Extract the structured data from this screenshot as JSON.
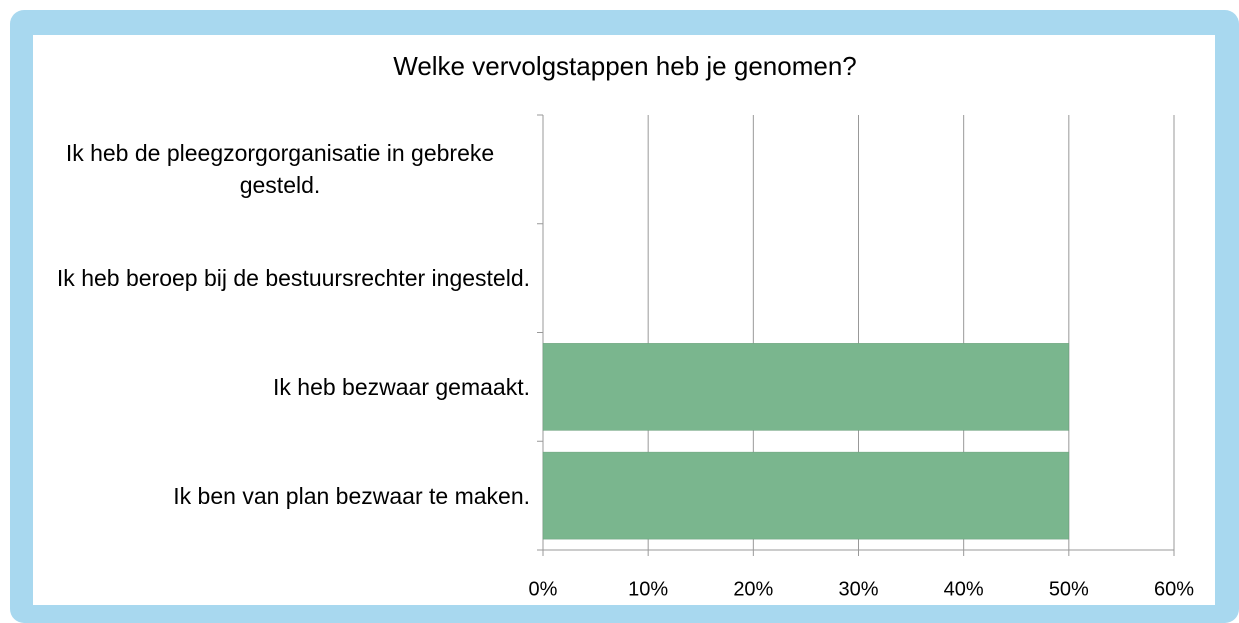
{
  "chart_data": {
    "type": "hbar",
    "title": "Welke vervolgstappen heb je genomen?",
    "categories": [
      "Ik heb de pleegzorgorganisatie in gebreke gesteld.",
      "Ik heb beroep bij de bestuursrechter ingesteld.",
      "Ik heb bezwaar gemaakt.",
      "Ik ben van plan bezwaar te maken."
    ],
    "values": [
      0,
      0,
      50,
      50
    ],
    "color": "#7ab68e",
    "xlim": [
      0,
      60
    ],
    "xticks": [
      {
        "value": 0,
        "label": "0%"
      },
      {
        "value": 10,
        "label": "10%"
      },
      {
        "value": 20,
        "label": "20%"
      },
      {
        "value": 30,
        "label": "30%"
      },
      {
        "value": 40,
        "label": "40%"
      },
      {
        "value": 50,
        "label": "50%"
      },
      {
        "value": 60,
        "label": "60%"
      }
    ],
    "grid": true
  }
}
